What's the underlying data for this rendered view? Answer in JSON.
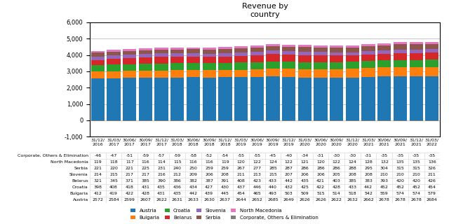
{
  "chart_data": {
    "type": "bar",
    "title": "Revenue by\ncountry",
    "categories": [
      "31/12/\n2016",
      "31/03/\n2017",
      "30/06/\n2017",
      "30/09/\n2017",
      "31/12/\n2017",
      "31/03/\n2018",
      "30/06/\n2018",
      "30/09/\n2018",
      "31/12/\n2018",
      "31/03/\n2019",
      "30/06/\n2019",
      "30/09/\n2019",
      "31/12/\n2019",
      "31/03/\n2020",
      "30/06/\n2020",
      "30/09/\n2020",
      "31/12/\n2020",
      "31/03/\n2021",
      "30/06/\n2021",
      "30/09/\n2021",
      "31/12/\n2021",
      "31/03/\n2022"
    ],
    "series": [
      {
        "name": "Austria",
        "values": [
          2572,
          2584,
          2599,
          2607,
          2622,
          2631,
          2633,
          2630,
          2637,
          2644,
          2652,
          2685,
          2649,
          2626,
          2626,
          2622,
          2632,
          2662,
          2678,
          2678,
          2678,
          2684
        ]
      },
      {
        "name": "Bulgaria",
        "values": [
          412,
          419,
          422,
          428,
          431,
          435,
          442,
          439,
          445,
          454,
          465,
          493,
          503,
          509,
          515,
          514,
          518,
          542,
          559,
          574,
          574,
          579
        ]
      },
      {
        "name": "Croatia",
        "values": [
          398,
          408,
          418,
          431,
          435,
          436,
          434,
          427,
          430,
          437,
          446,
          440,
          432,
          425,
          422,
          428,
          433,
          442,
          452,
          452,
          452,
          454
        ]
      },
      {
        "name": "Belarus",
        "values": [
          321,
          345,
          371,
          385,
          390,
          386,
          382,
          387,
          391,
          408,
          423,
          433,
          442,
          435,
          421,
          403,
          385,
          383,
          393,
          420,
          420,
          426
        ]
      },
      {
        "name": "Slovenia",
        "values": [
          214,
          215,
          217,
          217,
          216,
          212,
          209,
          206,
          208,
          211,
          213,
          215,
          207,
          206,
          206,
          205,
          208,
          208,
          210,
          210,
          210,
          211
        ]
      },
      {
        "name": "Serbia",
        "values": [
          221,
          220,
          221,
          225,
          231,
          240,
          250,
          259,
          259,
          267,
          277,
          285,
          287,
          286,
          286,
          286,
          288,
          295,
          304,
          315,
          315,
          326
        ]
      },
      {
        "name": "North Macedonia",
        "values": [
          119,
          118,
          117,
          116,
          114,
          115,
          116,
          116,
          119,
          120,
          122,
          124,
          122,
          121,
          120,
          122,
          124,
          128,
          132,
          135,
          135,
          136
        ]
      },
      {
        "name": "Corporate, Others & Elimination",
        "values": [
          -46,
          -47,
          -51,
          -59,
          -57,
          -59,
          -58,
          -52,
          -54,
          -55,
          -55,
          -45,
          -40,
          -34,
          -31,
          -30,
          -30,
          -31,
          -35,
          -35,
          -35,
          -35
        ]
      }
    ],
    "ylim": [
      -1000,
      6000
    ],
    "yticks": [
      {
        "value": -1000,
        "label": "-1,000"
      },
      0,
      {
        "value": 1000,
        "label": "1,000"
      },
      {
        "value": 2000,
        "label": "2,000"
      },
      {
        "value": 3000,
        "label": "3,000"
      },
      {
        "value": 4000,
        "label": "4,000"
      },
      {
        "value": 5000,
        "label": "5,000"
      },
      {
        "value": 6000,
        "label": "6,000"
      }
    ],
    "stacked": true,
    "grid": true,
    "legend": "lower center"
  }
}
